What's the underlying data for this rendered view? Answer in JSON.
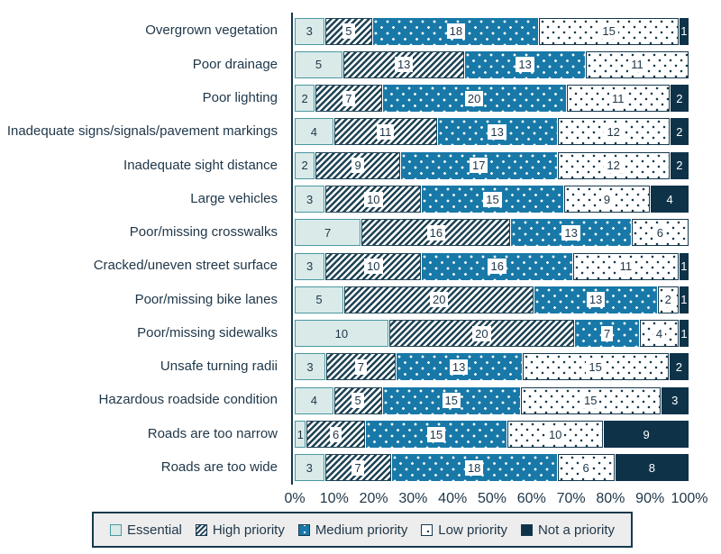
{
  "chart_data": {
    "type": "bar",
    "variant": "horizontal-stacked",
    "title": "",
    "xlabel": "",
    "ylabel": "",
    "x_axis": {
      "min": 0,
      "max": 100,
      "format": "percent",
      "grid": false
    },
    "x_ticks": [
      "0%",
      "10%",
      "20%",
      "30%",
      "40%",
      "50%",
      "60%",
      "70%",
      "80%",
      "90%",
      "100%"
    ],
    "legend_position": "bottom",
    "note": "segment widths are each value's share of the row total",
    "categories": [
      "Overgrown vegetation",
      "Poor drainage",
      "Poor lighting",
      "Inadequate signs/signals/pavement markings",
      "Inadequate sight distance",
      "Large vehicles",
      "Poor/missing crosswalks",
      "Cracked/uneven street surface",
      "Poor/missing bike lanes",
      "Poor/missing sidewalks",
      "Unsafe turning radii",
      "Hazardous roadside condition",
      "Roads are too narrow",
      "Roads are too wide"
    ],
    "series": [
      {
        "name": "Essential",
        "color": "#d9eae9",
        "pattern": "solid-light",
        "values": [
          3,
          5,
          2,
          4,
          2,
          3,
          7,
          3,
          5,
          10,
          3,
          4,
          1,
          3
        ]
      },
      {
        "name": "High priority",
        "color": "#1d4254",
        "pattern": "diagonal-hatch",
        "values": [
          5,
          13,
          7,
          11,
          9,
          10,
          16,
          10,
          20,
          20,
          7,
          5,
          6,
          7
        ]
      },
      {
        "name": "Medium priority",
        "color": "#1879a8",
        "pattern": "white-dots-on-blue",
        "values": [
          18,
          13,
          20,
          13,
          17,
          15,
          13,
          16,
          13,
          7,
          13,
          15,
          15,
          18
        ]
      },
      {
        "name": "Low priority",
        "color": "#ffffff",
        "pattern": "dark-dots-on-white",
        "values": [
          15,
          11,
          11,
          12,
          12,
          9,
          6,
          11,
          2,
          4,
          15,
          15,
          10,
          6
        ]
      },
      {
        "name": "Not a priority",
        "color": "#0e3349",
        "pattern": "solid-dark",
        "values": [
          1,
          0,
          2,
          2,
          2,
          4,
          0,
          1,
          1,
          1,
          2,
          3,
          9,
          8
        ]
      }
    ],
    "colors": {
      "essential_fill": "#d9eae9",
      "essential_border": "#4b98a0",
      "hatch_stripe": "#1d4254",
      "medium_blue": "#1879a8",
      "low_dot": "#16394e",
      "not_priority": "#0e3349",
      "axis": "#16394e",
      "text": "#1e3648",
      "legend_background": "#ededed"
    }
  }
}
